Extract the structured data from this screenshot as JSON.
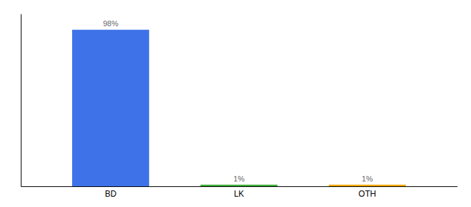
{
  "chart_data": {
    "type": "bar",
    "categories": [
      "BD",
      "LK",
      "OTH"
    ],
    "values": [
      98,
      1,
      1
    ],
    "value_labels": [
      "98%",
      "1%",
      "1%"
    ],
    "colors": [
      "#3d72e8",
      "#3aaa35",
      "#f0a500"
    ],
    "ylim": [
      0,
      108
    ],
    "data_labels": true,
    "tick_labels": "x",
    "grid": false
  }
}
